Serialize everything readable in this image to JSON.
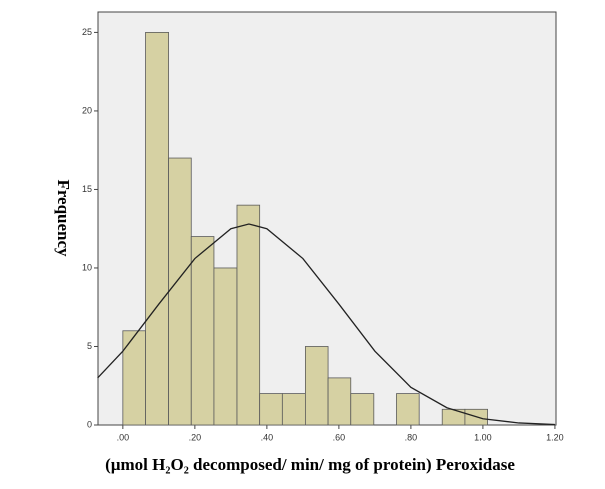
{
  "chart_data": {
    "type": "histogram",
    "xlabel": "(µmol H₂O₂ decomposed/ min/ mg of protein) Peroxidase",
    "ylabel": "Frequency",
    "bins": [
      0,
      0.063,
      0.127,
      0.19,
      0.253,
      0.317,
      0.38,
      0.443,
      0.507,
      0.57,
      0.633,
      0.697,
      0.76,
      0.823,
      0.887,
      0.95,
      1.013
    ],
    "counts": [
      6,
      25,
      17,
      12,
      10,
      14,
      2,
      2,
      5,
      3,
      2,
      0,
      2,
      0,
      1,
      1
    ],
    "color": "#d6d1a3",
    "curve": {
      "color": "#222222",
      "x": [
        -0.07,
        0,
        0.1,
        0.2,
        0.3,
        0.35,
        0.4,
        0.5,
        0.6,
        0.7,
        0.8,
        0.9,
        1.0,
        1.1,
        1.2
      ],
      "y": [
        3.0,
        4.7,
        7.7,
        10.6,
        12.5,
        12.8,
        12.5,
        10.6,
        7.7,
        4.7,
        2.4,
        1.1,
        0.4,
        0.13,
        0.03
      ]
    },
    "xlim": [
      -0.069,
      1.203
    ],
    "ylim": [
      0,
      26.3
    ],
    "xticks": [
      {
        "value": 0,
        "label": ".00"
      },
      {
        "value": 0.2,
        "label": ".20"
      },
      {
        "value": 0.4,
        "label": ".40"
      },
      {
        "value": 0.6,
        "label": ".60"
      },
      {
        "value": 0.8,
        "label": ".80"
      },
      {
        "value": 1.0,
        "label": "1.00"
      },
      {
        "value": 1.2,
        "label": "1.20"
      }
    ],
    "yticks": [
      0,
      5,
      10,
      15,
      20,
      25
    ]
  }
}
